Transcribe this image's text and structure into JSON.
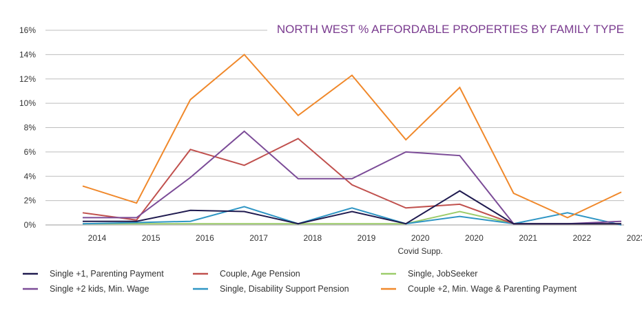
{
  "chart_data": {
    "type": "line",
    "title": "NORTH WEST % AFFORDABLE PROPERTIES BY FAMILY TYPE",
    "xlabel": "",
    "ylabel": "",
    "ylim": [
      0,
      16
    ],
    "y_ticks": [
      "0%",
      "2%",
      "4%",
      "6%",
      "8%",
      "10%",
      "12%",
      "14%",
      "16%"
    ],
    "categories": [
      "2014",
      "2015",
      "2016",
      "2017",
      "2018",
      "2019",
      "2020",
      "2020",
      "2021",
      "2022",
      "2023"
    ],
    "category_sublabels": [
      "",
      "",
      "",
      "",
      "",
      "",
      "Covid Supp.",
      "",
      "",
      "",
      ""
    ],
    "grid": true,
    "legend_position": "bottom",
    "series": [
      {
        "name": "Single +1, Parenting Payment",
        "color": "#1f1a4f",
        "values": [
          0.3,
          0.3,
          1.2,
          1.1,
          0.1,
          1.1,
          0.1,
          2.8,
          0.1,
          0.1,
          0.1
        ]
      },
      {
        "name": "Single +2 kids, Min. Wage",
        "color": "#7b4b97",
        "values": [
          0.6,
          0.6,
          3.9,
          7.7,
          3.8,
          3.8,
          6.0,
          5.7,
          0.1,
          0.1,
          0.3
        ]
      },
      {
        "name": "Couple, Age Pension",
        "color": "#c0504d",
        "values": [
          1.0,
          0.4,
          6.2,
          4.9,
          7.1,
          3.3,
          1.4,
          1.7,
          0.1,
          0.1,
          0.1
        ]
      },
      {
        "name": "Single, Disability Support Pension",
        "color": "#2e95c4",
        "values": [
          0.1,
          0.2,
          0.3,
          1.5,
          0.1,
          1.4,
          0.1,
          0.7,
          0.1,
          1.0,
          0.0
        ]
      },
      {
        "name": "Single, JobSeeker",
        "color": "#9ccc6a",
        "values": [
          0.1,
          0.1,
          0.1,
          0.1,
          0.1,
          0.1,
          0.1,
          1.1,
          0.1,
          0.1,
          0.1
        ]
      },
      {
        "name": "Couple +2, Min. Wage & Parenting Payment",
        "color": "#f0882a",
        "values": [
          3.2,
          1.8,
          10.3,
          14.0,
          9.0,
          12.3,
          7.0,
          11.3,
          2.6,
          0.6,
          2.7
        ]
      }
    ]
  }
}
